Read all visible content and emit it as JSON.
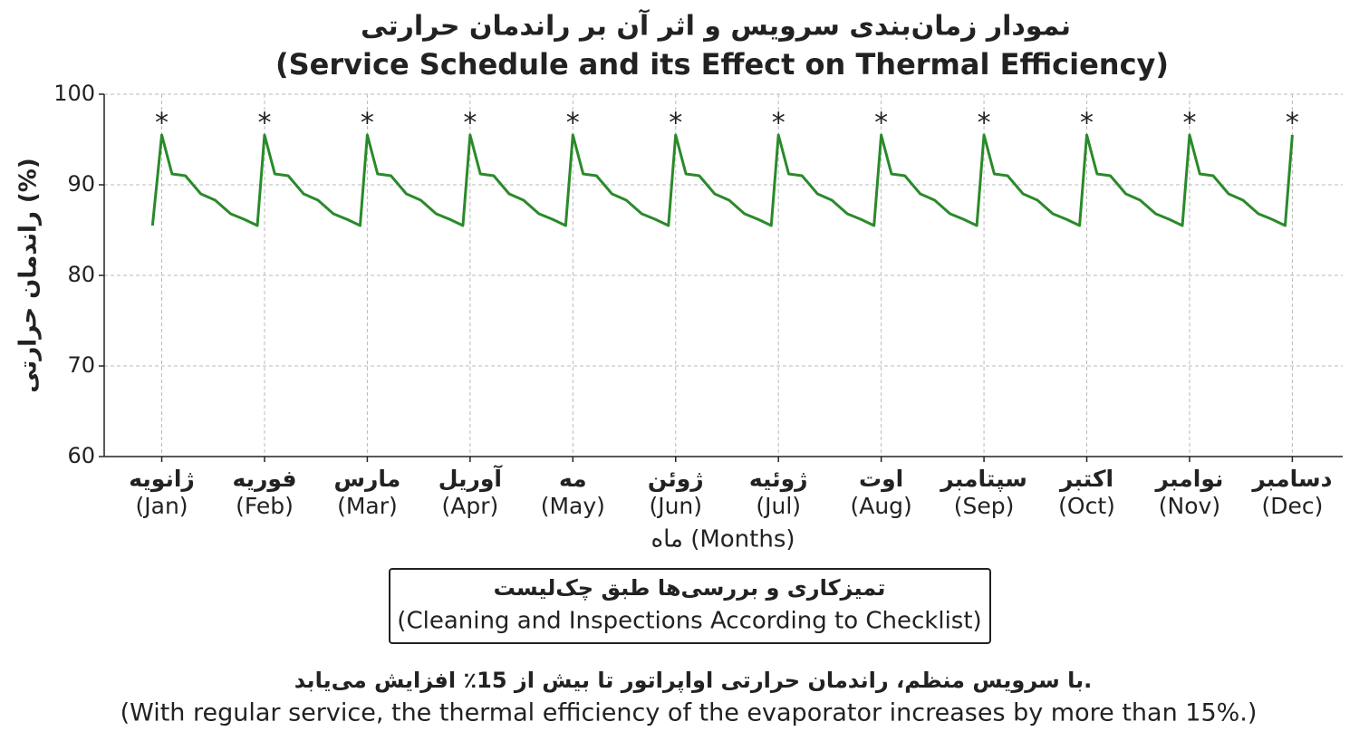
{
  "chart_data": {
    "type": "line",
    "title": "نمودار زمان‌بندی سرویس و اثر آن بر راندمان حرارتی",
    "subtitle": "(Service Schedule and its Effect on Thermal Efficiency)",
    "y_label": "راندمان حرارتی (%)",
    "x_label": "ماه (Months)",
    "box_text": [
      "تمیزکاری و بررسی‌ها طبق چک‌لیست",
      "(Cleaning and Inspections According to Checklist)"
    ],
    "footnote": [
      "با سرویس منظم، راندمان حرارتی اواپراتور تا بیش از 15٪ افزایش می‌یابد.",
      "(With regular service, the thermal efficiency of the evaporator increases by more than 15%.)"
    ],
    "xlim": [
      0.44,
      12.49
    ],
    "ylim": [
      60,
      100
    ],
    "yticks": [
      60,
      70,
      80,
      90,
      100
    ],
    "xticks": [
      {
        "value": 1,
        "label": "ژانویه",
        "label_en": "(Jan)"
      },
      {
        "value": 2,
        "label": "فوریه",
        "label_en": "(Feb)"
      },
      {
        "value": 3,
        "label": "مارس",
        "label_en": "(Mar)"
      },
      {
        "value": 4,
        "label": "آوریل",
        "label_en": "(Apr)"
      },
      {
        "value": 5,
        "label": "مه",
        "label_en": "(May)"
      },
      {
        "value": 6,
        "label": "ژوئن",
        "label_en": "(Jun)"
      },
      {
        "value": 7,
        "label": "ژوئیه",
        "label_en": "(Jul)"
      },
      {
        "value": 8,
        "label": "اوت",
        "label_en": "(Aug)"
      },
      {
        "value": 9,
        "label": "سپتامبر",
        "label_en": "(Sep)"
      },
      {
        "value": 10,
        "label": "اکتبر",
        "label_en": "(Oct)"
      },
      {
        "value": 11,
        "label": "نوامبر",
        "label_en": "(Nov)"
      },
      {
        "value": 12,
        "label": "دسامبر",
        "label_en": "(Dec)"
      }
    ],
    "grid": true,
    "series": [
      {
        "color": "#2a8a2a",
        "x": [
          0.91,
          1,
          1.1,
          1.23,
          1.38,
          1.52,
          1.67,
          1.8,
          1.93,
          2,
          2.1,
          2.23,
          2.38,
          2.52,
          2.67,
          2.8,
          2.93,
          3,
          3.1,
          3.23,
          3.38,
          3.52,
          3.67,
          3.8,
          3.93,
          4,
          4.1,
          4.23,
          4.38,
          4.52,
          4.67,
          4.8,
          4.93,
          5,
          5.1,
          5.23,
          5.38,
          5.52,
          5.67,
          5.8,
          5.93,
          6,
          6.1,
          6.23,
          6.38,
          6.52,
          6.67,
          6.8,
          6.93,
          7,
          7.1,
          7.23,
          7.38,
          7.52,
          7.67,
          7.8,
          7.93,
          8,
          8.1,
          8.23,
          8.38,
          8.52,
          8.67,
          8.8,
          8.93,
          9,
          9.1,
          9.23,
          9.38,
          9.52,
          9.67,
          9.8,
          9.93,
          10,
          10.1,
          10.23,
          10.38,
          10.52,
          10.67,
          10.8,
          10.93,
          11,
          11.1,
          11.23,
          11.38,
          11.52,
          11.67,
          11.8,
          11.93,
          12
        ],
        "values": [
          85.5,
          95.5,
          91.2,
          91.0,
          89.0,
          88.3,
          86.8,
          86.2,
          85.5,
          95.5,
          91.2,
          91.0,
          89.0,
          88.3,
          86.8,
          86.2,
          85.5,
          95.5,
          91.2,
          91.0,
          89.0,
          88.3,
          86.8,
          86.2,
          85.5,
          95.5,
          91.2,
          91.0,
          89.0,
          88.3,
          86.8,
          86.2,
          85.5,
          95.5,
          91.2,
          91.0,
          89.0,
          88.3,
          86.8,
          86.2,
          85.5,
          95.5,
          91.2,
          91.0,
          89.0,
          88.3,
          86.8,
          86.2,
          85.5,
          95.5,
          91.2,
          91.0,
          89.0,
          88.3,
          86.8,
          86.2,
          85.5,
          95.5,
          91.2,
          91.0,
          89.0,
          88.3,
          86.8,
          86.2,
          85.5,
          95.5,
          91.2,
          91.0,
          89.0,
          88.3,
          86.8,
          86.2,
          85.5,
          95.5,
          91.2,
          91.0,
          89.0,
          88.3,
          86.8,
          86.2,
          85.5,
          95.5,
          91.2,
          91.0,
          89.0,
          88.3,
          86.8,
          86.2,
          85.5,
          95.5
        ]
      }
    ],
    "service_markers": {
      "label": "*",
      "x": [
        1,
        2,
        3,
        4,
        5,
        6,
        7,
        8,
        9,
        10,
        11,
        12
      ],
      "y": 97.3
    }
  }
}
